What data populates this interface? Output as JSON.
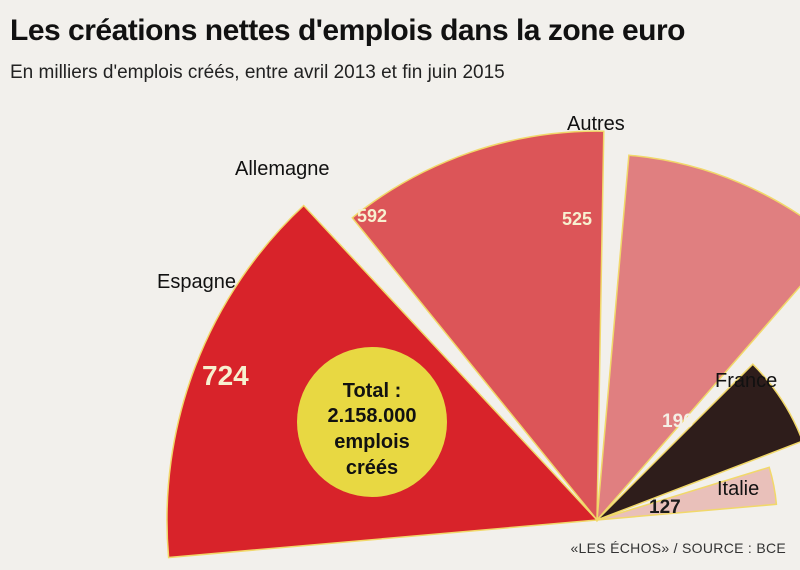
{
  "header": {
    "title": "Les créations nettes d'emplois dans la zone euro",
    "subtitle": "En milliers d'emplois créés, entre avril 2013 et fin juin 2015"
  },
  "center_label": {
    "line1": "Total :",
    "line2": "2.158.000",
    "line3": "emplois",
    "line4": "créés"
  },
  "source": "«LES ÉCHOS» / SOURCE : BCE",
  "colors": {
    "background": "#f2f0ec",
    "circle": "#e8d842",
    "outline": "#f1d86a"
  },
  "chart_data": {
    "type": "pie",
    "subtype": "polar-area",
    "title": "Les créations nettes d'emplois dans la zone euro",
    "subtitle": "En milliers d'emplois créés, entre avril 2013 et fin juin 2015",
    "unit": "milliers d'emplois",
    "total": "2.158.000 emplois créés",
    "categories": [
      "Espagne",
      "Allemagne",
      "Autres",
      "France",
      "Italie"
    ],
    "values": [
      724,
      592,
      525,
      190,
      127
    ],
    "colors": [
      "#d8232a",
      "#dc5558",
      "#e07f80",
      "#2e1d1b",
      "#e9c0ba"
    ]
  }
}
